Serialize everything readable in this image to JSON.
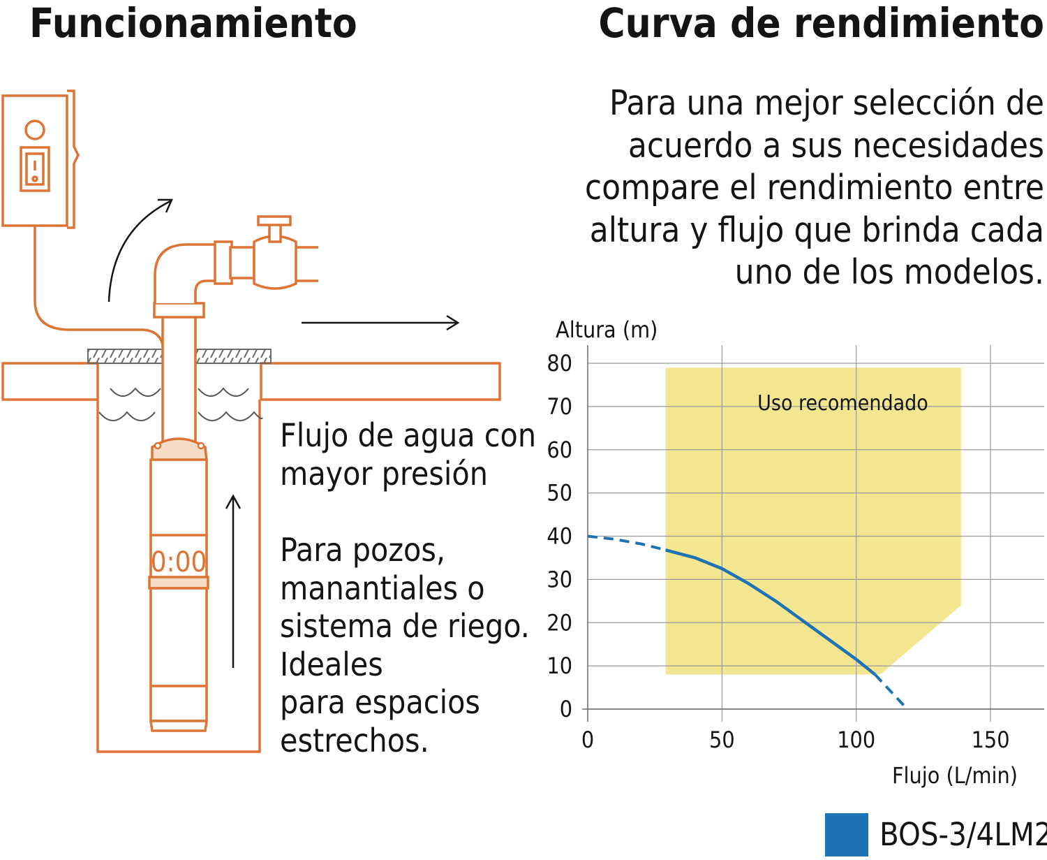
{
  "left": {
    "title": "Funcionamiento",
    "flow_lines": [
      "Flujo de agua con",
      "mayor presión"
    ],
    "uses_lines": [
      "Para pozos,",
      "manantiales o",
      "sistema de riego.",
      "Ideales",
      "para espacios",
      "estrechos."
    ],
    "clock_display": "0:00",
    "illustration_colors": {
      "stroke": "#de7433",
      "fill": "#f6ddc8",
      "arrow": "#141414"
    }
  },
  "right": {
    "title": "Curva de rendimiento",
    "intro_lines": [
      "Para una mejor selección de",
      "acuerdo a sus necesidades",
      "compare el rendimiento entre",
      "altura y flujo que brinda cada",
      "uno de los modelos."
    ]
  },
  "chart_data": {
    "type": "line",
    "title": "",
    "xlabel": "Flujo (L/min)",
    "ylabel": "Altura (m)",
    "xlim": [
      0,
      170
    ],
    "ylim": [
      0,
      80
    ],
    "x_ticks": [
      0,
      50,
      100,
      150
    ],
    "y_ticks": [
      0,
      10,
      20,
      30,
      40,
      50,
      60,
      70,
      80
    ],
    "grid": true,
    "recommended_zone": {
      "label": "Uso recomendado",
      "color": "#f2e690",
      "polygon": [
        [
          29,
          79
        ],
        [
          139,
          79
        ],
        [
          139,
          24
        ],
        [
          109,
          8
        ],
        [
          29,
          8
        ]
      ]
    },
    "series": [
      {
        "name": "BOS-3/4LM2",
        "color": "#1f73b5",
        "points": [
          [
            0,
            40
          ],
          [
            10,
            39.3
          ],
          [
            20,
            38.2
          ],
          [
            29,
            36.8
          ],
          [
            40,
            35
          ],
          [
            50,
            32.5
          ],
          [
            60,
            29
          ],
          [
            70,
            25
          ],
          [
            80,
            20.5
          ],
          [
            90,
            16
          ],
          [
            100,
            11.5
          ],
          [
            107,
            8
          ],
          [
            113,
            4
          ],
          [
            119,
            0
          ]
        ],
        "solid_range": [
          29,
          107
        ]
      }
    ]
  }
}
